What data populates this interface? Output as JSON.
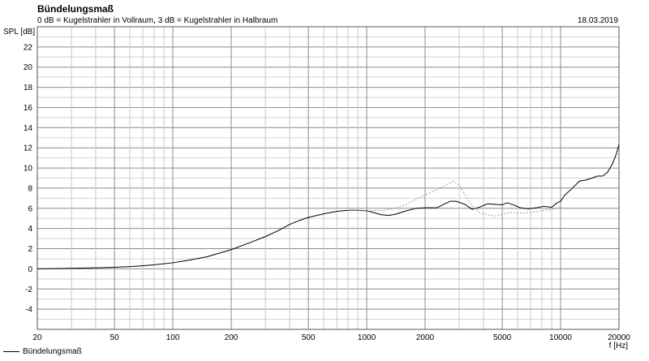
{
  "chart_data": {
    "type": "line",
    "title": "Bündelungsmaß",
    "subtitle": "0 dB = Kugelstrahler in Vollraum, 3 dB = Kugelstrahler in Halbraum",
    "date": "18.03.2019",
    "ylabel": "SPL [dB]",
    "xlabel": "f [Hz]",
    "xscale": "log",
    "xlim": [
      20,
      20000
    ],
    "ylim": [
      -6,
      24
    ],
    "grid": true,
    "legend_position": "bottom-left",
    "x_ticks": [
      {
        "value": 20,
        "label": "20"
      },
      {
        "value": 50,
        "label": "50"
      },
      {
        "value": 100,
        "label": "100"
      },
      {
        "value": 200,
        "label": "200"
      },
      {
        "value": 500,
        "label": "500"
      },
      {
        "value": 1000,
        "label": "1000"
      },
      {
        "value": 2000,
        "label": "2000"
      },
      {
        "value": 5000,
        "label": "5000"
      },
      {
        "value": 10000,
        "label": "10000"
      },
      {
        "value": 20000,
        "label": "20000"
      }
    ],
    "y_ticks": [
      -4,
      -2,
      0,
      2,
      4,
      6,
      8,
      10,
      12,
      14,
      16,
      18,
      20,
      22
    ],
    "series": [
      {
        "name": "Bündelungsmaß",
        "color": "#000000",
        "style": "solid",
        "points": [
          [
            20,
            0.0
          ],
          [
            30,
            0.05
          ],
          [
            40,
            0.1
          ],
          [
            50,
            0.15
          ],
          [
            60,
            0.22
          ],
          [
            70,
            0.3
          ],
          [
            80,
            0.4
          ],
          [
            100,
            0.6
          ],
          [
            120,
            0.85
          ],
          [
            150,
            1.2
          ],
          [
            200,
            1.9
          ],
          [
            250,
            2.6
          ],
          [
            300,
            3.2
          ],
          [
            350,
            3.8
          ],
          [
            400,
            4.4
          ],
          [
            450,
            4.8
          ],
          [
            500,
            5.1
          ],
          [
            600,
            5.45
          ],
          [
            700,
            5.7
          ],
          [
            800,
            5.8
          ],
          [
            900,
            5.8
          ],
          [
            1000,
            5.75
          ],
          [
            1100,
            5.55
          ],
          [
            1200,
            5.35
          ],
          [
            1300,
            5.3
          ],
          [
            1400,
            5.4
          ],
          [
            1600,
            5.75
          ],
          [
            1800,
            6.0
          ],
          [
            2000,
            6.05
          ],
          [
            2300,
            6.05
          ],
          [
            2500,
            6.4
          ],
          [
            2700,
            6.7
          ],
          [
            2900,
            6.7
          ],
          [
            3200,
            6.4
          ],
          [
            3500,
            5.9
          ],
          [
            3800,
            6.1
          ],
          [
            4200,
            6.45
          ],
          [
            4600,
            6.4
          ],
          [
            5000,
            6.35
          ],
          [
            5300,
            6.55
          ],
          [
            5700,
            6.35
          ],
          [
            6200,
            6.05
          ],
          [
            6800,
            5.95
          ],
          [
            7500,
            6.05
          ],
          [
            8200,
            6.2
          ],
          [
            9000,
            6.1
          ],
          [
            9500,
            6.5
          ],
          [
            10000,
            6.7
          ],
          [
            10500,
            7.3
          ],
          [
            11500,
            8.0
          ],
          [
            12500,
            8.7
          ],
          [
            13500,
            8.8
          ],
          [
            14500,
            9.0
          ],
          [
            15500,
            9.2
          ],
          [
            16500,
            9.2
          ],
          [
            17500,
            9.6
          ],
          [
            18500,
            10.4
          ],
          [
            19300,
            11.3
          ],
          [
            20000,
            12.3
          ]
        ]
      },
      {
        "name": "",
        "color": "#999999",
        "style": "dotted",
        "points": [
          [
            800,
            5.8
          ],
          [
            1000,
            5.75
          ],
          [
            1200,
            5.8
          ],
          [
            1400,
            6.0
          ],
          [
            1600,
            6.4
          ],
          [
            1800,
            6.9
          ],
          [
            2000,
            7.3
          ],
          [
            2200,
            7.7
          ],
          [
            2500,
            8.2
          ],
          [
            2800,
            8.7
          ],
          [
            3000,
            8.3
          ],
          [
            3200,
            7.4
          ],
          [
            3500,
            6.2
          ],
          [
            3800,
            5.6
          ],
          [
            4200,
            5.35
          ],
          [
            4600,
            5.25
          ],
          [
            5000,
            5.4
          ],
          [
            5500,
            5.6
          ],
          [
            6000,
            5.5
          ],
          [
            7000,
            5.6
          ],
          [
            8000,
            5.75
          ],
          [
            9000,
            5.9
          ],
          [
            10000,
            6.1
          ]
        ]
      }
    ]
  }
}
